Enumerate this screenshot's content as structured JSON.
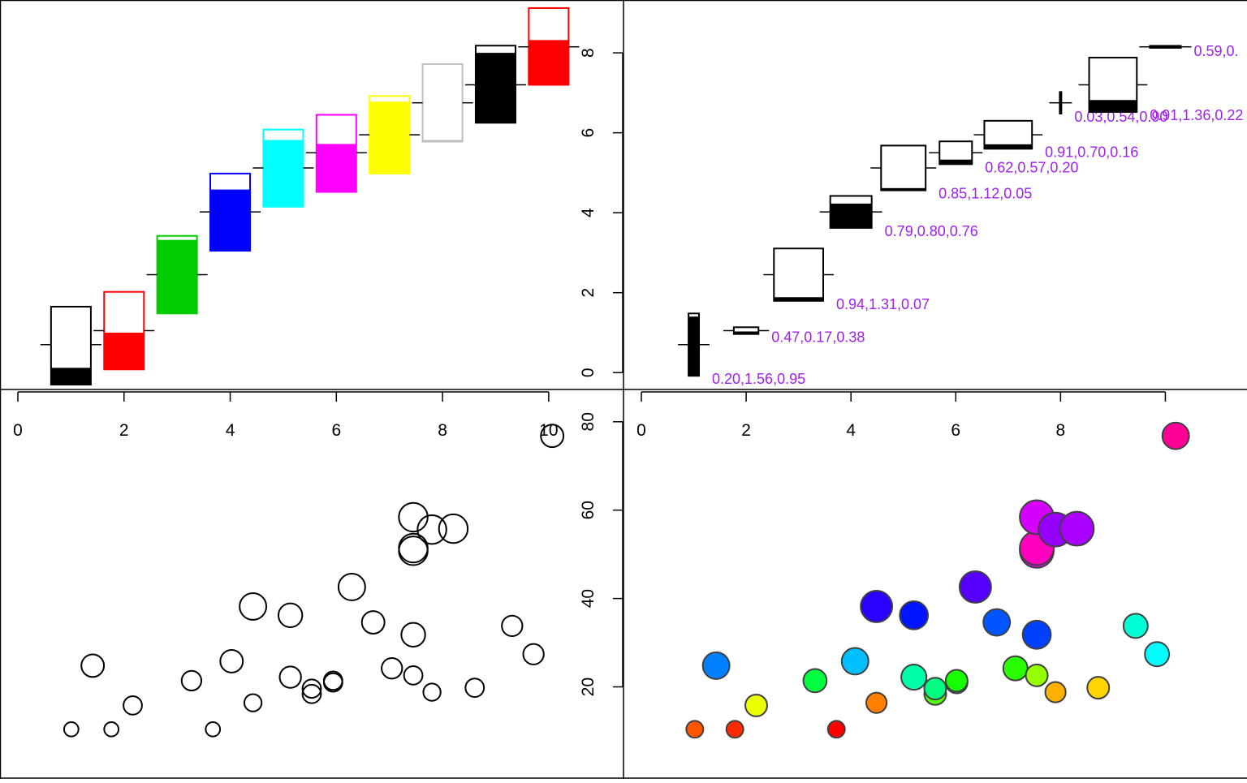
{
  "chart_data": [
    {
      "type": "bar",
      "subtype": "symbols-thermometers",
      "title": "",
      "xlabel": "",
      "ylabel": "",
      "xlim": [
        0,
        10.4
      ],
      "ylim": [
        -0.3,
        9.2
      ],
      "x_ticks": [
        "0",
        "2",
        "4",
        "6",
        "8",
        "10"
      ],
      "y_ticks": [
        "0",
        "2",
        "4",
        "6",
        "8"
      ],
      "y_axis_side": "right",
      "x_axis_side": "bottom",
      "items": [
        {
          "x": 1.0,
          "y": 0.7,
          "width": 0.75,
          "bottom": -0.3,
          "top": 1.65,
          "fill_top": 0.12,
          "fill_color": "#000000",
          "outline_color": "#000000"
        },
        {
          "x": 2.0,
          "y": 1.05,
          "width": 0.75,
          "bottom": 0.08,
          "top": 2.02,
          "fill_top": 1.0,
          "fill_color": "#ff0000",
          "outline_color": "#ff0000"
        },
        {
          "x": 3.0,
          "y": 2.45,
          "width": 0.75,
          "bottom": 1.48,
          "top": 3.42,
          "fill_top": 3.32,
          "fill_color": "#00cd00",
          "outline_color": "#00cd00"
        },
        {
          "x": 4.0,
          "y": 4.02,
          "width": 0.75,
          "bottom": 3.05,
          "top": 4.98,
          "fill_top": 4.58,
          "fill_color": "#0000ff",
          "outline_color": "#0000ff"
        },
        {
          "x": 5.0,
          "y": 5.12,
          "width": 0.75,
          "bottom": 4.15,
          "top": 6.08,
          "fill_top": 5.82,
          "fill_color": "#00ffff",
          "outline_color": "#00ffff"
        },
        {
          "x": 6.0,
          "y": 5.5,
          "width": 0.75,
          "bottom": 4.52,
          "top": 6.45,
          "fill_top": 5.72,
          "fill_color": "#ff00ff",
          "outline_color": "#ff00ff"
        },
        {
          "x": 7.0,
          "y": 5.95,
          "width": 0.75,
          "bottom": 4.98,
          "top": 6.92,
          "fill_top": 6.78,
          "fill_color": "#ffff00",
          "outline_color": "#ffff00"
        },
        {
          "x": 8.0,
          "y": 6.75,
          "width": 0.75,
          "bottom": 5.78,
          "top": 7.72,
          "fill_top": 5.82,
          "fill_color": "#bebebe",
          "outline_color": "#bebebe"
        },
        {
          "x": 9.0,
          "y": 7.2,
          "width": 0.75,
          "bottom": 6.25,
          "top": 8.18,
          "fill_top": 8.0,
          "fill_color": "#000000",
          "outline_color": "#000000"
        },
        {
          "x": 10.0,
          "y": 8.15,
          "width": 0.75,
          "bottom": 7.2,
          "top": 9.12,
          "fill_top": 8.32,
          "fill_color": "#ff0000",
          "outline_color": "#ff0000"
        }
      ]
    },
    {
      "type": "bar",
      "subtype": "symbols-thermometers-labeled",
      "title": "",
      "xlabel": "",
      "ylabel": "",
      "xlim": [
        0,
        11.0
      ],
      "ylim": [
        -0.3,
        9.2
      ],
      "x_ticks": [
        "0",
        "2",
        "4",
        "6",
        "8"
      ],
      "y_ticks": [
        "0",
        "2",
        "4",
        "6",
        "8"
      ],
      "x_axis_side": "top",
      "label_color": "#a020f0",
      "items": [
        {
          "x": 1.0,
          "y": 0.7,
          "width": 0.2,
          "height": 1.56,
          "fill_frac": 0.95,
          "label": "0.20,1.56,0.95"
        },
        {
          "x": 2.0,
          "y": 1.05,
          "width": 0.47,
          "height": 0.17,
          "fill_frac": 0.38,
          "label": "0.47,0.17,0.38"
        },
        {
          "x": 3.0,
          "y": 2.45,
          "width": 0.94,
          "height": 1.31,
          "fill_frac": 0.07,
          "label": "0.94,1.31,0.07"
        },
        {
          "x": 4.0,
          "y": 4.02,
          "width": 0.79,
          "height": 0.8,
          "fill_frac": 0.76,
          "label": "0.79,0.80,0.76"
        },
        {
          "x": 5.0,
          "y": 5.12,
          "width": 0.85,
          "height": 1.12,
          "fill_frac": 0.05,
          "label": "0.85,1.12,0.05"
        },
        {
          "x": 6.0,
          "y": 5.5,
          "width": 0.62,
          "height": 0.57,
          "fill_frac": 0.2,
          "label": "0.62,0.57,0.20"
        },
        {
          "x": 7.0,
          "y": 5.95,
          "width": 0.91,
          "height": 0.7,
          "fill_frac": 0.16,
          "label": "0.91,0.70,0.16"
        },
        {
          "x": 8.0,
          "y": 6.75,
          "width": 0.03,
          "height": 0.54,
          "fill_frac": 0.9,
          "label": "0.03,0.54,0.90"
        },
        {
          "x": 9.0,
          "y": 7.2,
          "width": 0.91,
          "height": 1.36,
          "fill_frac": 0.22,
          "label": "0.91,1.36,0.22"
        },
        {
          "x": 10.0,
          "y": 8.15,
          "width": 0.59,
          "height": 0.05,
          "fill_frac": 0.9,
          "label": "0.59,0."
        }
      ]
    },
    {
      "type": "scatter",
      "subtype": "bubble-outline",
      "title": "",
      "xlabel": "",
      "ylabel": "",
      "xlim": [
        0,
        11.0
      ],
      "ylim": [
        1,
        84
      ],
      "x_ticks": [],
      "y_ticks": [],
      "point_color": "#000000",
      "points": [
        {
          "x": 1.0,
          "y": 10.4,
          "r": 0.35
        },
        {
          "x": 1.75,
          "y": 10.4,
          "r": 0.35
        },
        {
          "x": 3.65,
          "y": 10.4,
          "r": 0.35
        },
        {
          "x": 1.4,
          "y": 24.8,
          "r": 0.55
        },
        {
          "x": 2.15,
          "y": 15.8,
          "r": 0.45
        },
        {
          "x": 3.25,
          "y": 21.4,
          "r": 0.48
        },
        {
          "x": 4.0,
          "y": 25.8,
          "r": 0.55
        },
        {
          "x": 4.4,
          "y": 16.4,
          "r": 0.42
        },
        {
          "x": 4.4,
          "y": 38.2,
          "r": 0.65
        },
        {
          "x": 5.1,
          "y": 36.2,
          "r": 0.58
        },
        {
          "x": 5.1,
          "y": 22.2,
          "r": 0.52
        },
        {
          "x": 5.5,
          "y": 18.4,
          "r": 0.45
        },
        {
          "x": 5.5,
          "y": 19.6,
          "r": 0.45
        },
        {
          "x": 5.9,
          "y": 21.0,
          "r": 0.45
        },
        {
          "x": 5.9,
          "y": 21.4,
          "r": 0.45
        },
        {
          "x": 6.25,
          "y": 42.6,
          "r": 0.65
        },
        {
          "x": 6.65,
          "y": 34.6,
          "r": 0.55
        },
        {
          "x": 7.0,
          "y": 24.2,
          "r": 0.5
        },
        {
          "x": 7.4,
          "y": 22.6,
          "r": 0.45
        },
        {
          "x": 7.4,
          "y": 31.8,
          "r": 0.58
        },
        {
          "x": 7.4,
          "y": 50.8,
          "r": 0.7
        },
        {
          "x": 7.4,
          "y": 51.4,
          "r": 0.7
        },
        {
          "x": 7.4,
          "y": 58.4,
          "r": 0.7
        },
        {
          "x": 7.75,
          "y": 18.8,
          "r": 0.42
        },
        {
          "x": 7.75,
          "y": 55.6,
          "r": 0.7
        },
        {
          "x": 8.15,
          "y": 55.8,
          "r": 0.7
        },
        {
          "x": 8.55,
          "y": 19.8,
          "r": 0.45
        },
        {
          "x": 9.25,
          "y": 33.8,
          "r": 0.5
        },
        {
          "x": 9.65,
          "y": 27.4,
          "r": 0.5
        },
        {
          "x": 10.0,
          "y": 76.8,
          "r": 0.55
        }
      ]
    },
    {
      "type": "scatter",
      "subtype": "bubble-filled",
      "title": "",
      "xlabel": "",
      "ylabel": "",
      "xlim": [
        0,
        11.0
      ],
      "ylim": [
        1,
        84
      ],
      "x_ticks": [],
      "y_ticks": [
        "20",
        "40",
        "60",
        "80"
      ],
      "y_axis_side": "left",
      "outline_color": "#404040",
      "points": [
        {
          "x": 1.0,
          "y": 10.4,
          "r": 0.35,
          "color": "#ff5500"
        },
        {
          "x": 1.75,
          "y": 10.4,
          "r": 0.35,
          "color": "#ff2a00"
        },
        {
          "x": 3.65,
          "y": 10.4,
          "r": 0.35,
          "color": "#ff0000"
        },
        {
          "x": 1.4,
          "y": 24.8,
          "r": 0.55,
          "color": "#0080ff"
        },
        {
          "x": 2.15,
          "y": 15.8,
          "r": 0.45,
          "color": "#eaff00"
        },
        {
          "x": 3.25,
          "y": 21.4,
          "r": 0.48,
          "color": "#00ff40"
        },
        {
          "x": 4.0,
          "y": 25.8,
          "r": 0.55,
          "color": "#00bfff"
        },
        {
          "x": 4.4,
          "y": 16.4,
          "r": 0.42,
          "color": "#ff8000"
        },
        {
          "x": 4.4,
          "y": 38.2,
          "r": 0.65,
          "color": "#2a00ff"
        },
        {
          "x": 5.1,
          "y": 36.2,
          "r": 0.58,
          "color": "#0015ff"
        },
        {
          "x": 5.1,
          "y": 22.2,
          "r": 0.52,
          "color": "#00ffaa"
        },
        {
          "x": 5.5,
          "y": 18.4,
          "r": 0.45,
          "color": "#55ff00"
        },
        {
          "x": 5.5,
          "y": 19.6,
          "r": 0.45,
          "color": "#00ff80"
        },
        {
          "x": 5.9,
          "y": 21.0,
          "r": 0.45,
          "color": "#00ff2a"
        },
        {
          "x": 5.9,
          "y": 21.4,
          "r": 0.45,
          "color": "#15ff00"
        },
        {
          "x": 6.25,
          "y": 42.6,
          "r": 0.65,
          "color": "#5500ff"
        },
        {
          "x": 6.65,
          "y": 34.6,
          "r": 0.55,
          "color": "#0055ff"
        },
        {
          "x": 7.0,
          "y": 24.2,
          "r": 0.5,
          "color": "#2aff00"
        },
        {
          "x": 7.4,
          "y": 22.6,
          "r": 0.45,
          "color": "#95ff00"
        },
        {
          "x": 7.4,
          "y": 31.8,
          "r": 0.58,
          "color": "#0040ff"
        },
        {
          "x": 7.4,
          "y": 50.8,
          "r": 0.7,
          "color": "#ea00ff"
        },
        {
          "x": 7.4,
          "y": 51.4,
          "r": 0.7,
          "color": "#ff00c0"
        },
        {
          "x": 7.4,
          "y": 58.4,
          "r": 0.7,
          "color": "#d500ff"
        },
        {
          "x": 7.75,
          "y": 18.8,
          "r": 0.42,
          "color": "#ffb000"
        },
        {
          "x": 7.75,
          "y": 55.6,
          "r": 0.7,
          "color": "#9500ff"
        },
        {
          "x": 8.15,
          "y": 55.8,
          "r": 0.7,
          "color": "#aa00ff"
        },
        {
          "x": 8.55,
          "y": 19.8,
          "r": 0.45,
          "color": "#ffd500"
        },
        {
          "x": 9.25,
          "y": 33.8,
          "r": 0.5,
          "color": "#00ffd5"
        },
        {
          "x": 9.65,
          "y": 27.4,
          "r": 0.5,
          "color": "#00ffff"
        },
        {
          "x": 10.0,
          "y": 76.8,
          "r": 0.55,
          "color": "#ff0095"
        }
      ]
    }
  ]
}
